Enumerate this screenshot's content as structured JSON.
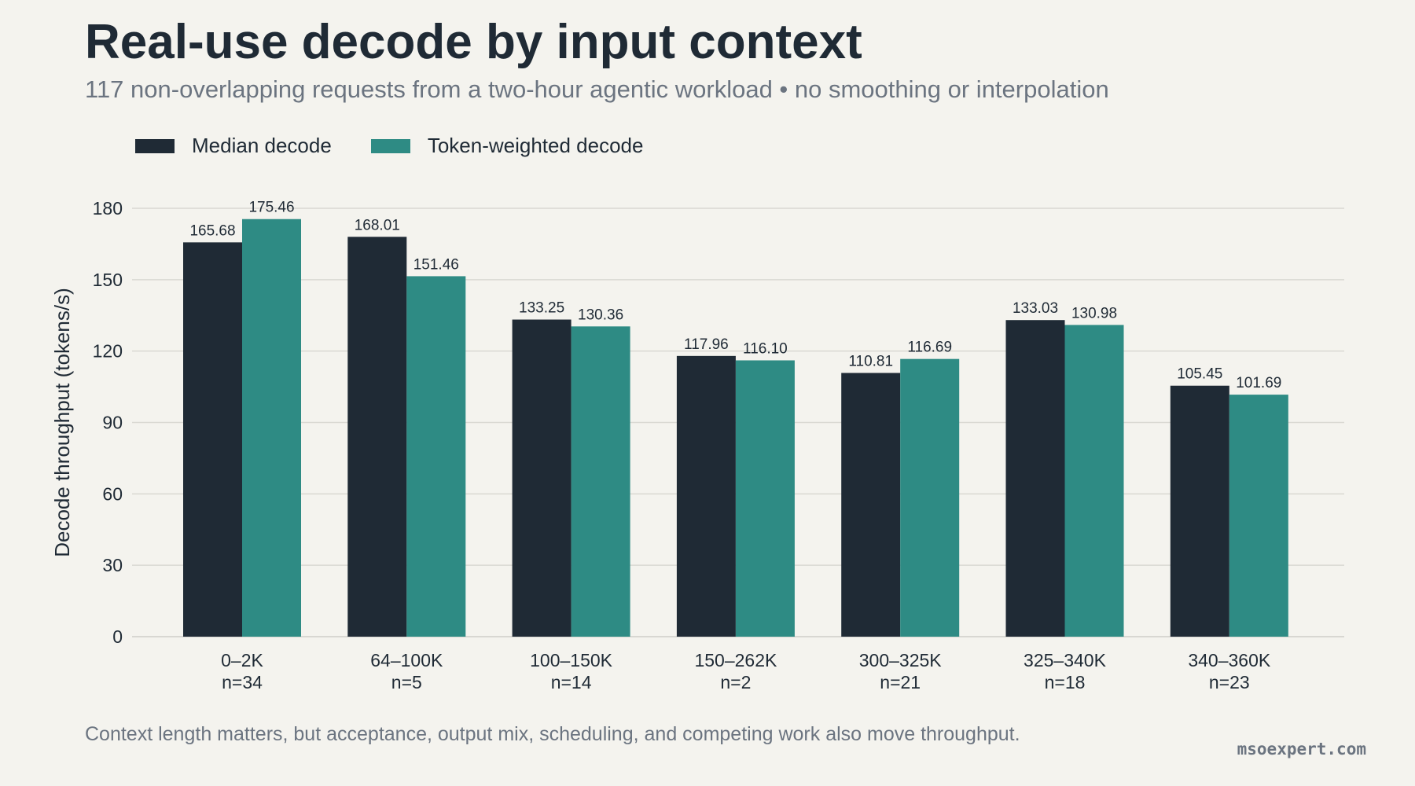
{
  "header": {
    "title": "Real-use decode by input context",
    "subtitle": "117 non-overlapping requests from a two-hour agentic workload • no smoothing or interpolation"
  },
  "footer": {
    "note": "Context length matters, but acceptance, output mix, scheduling, and competing work also move throughput.",
    "brand": "msoexpert.com"
  },
  "colors": {
    "background": "#f4f3ee",
    "median": "#1f2a35",
    "weighted": "#2e8b84",
    "grid": "#d9d8d2"
  },
  "chart_data": {
    "type": "bar",
    "title": "Real-use decode by input context",
    "subtitle": "117 non-overlapping requests from a two-hour agentic workload • no smoothing or interpolation",
    "xlabel": "",
    "ylabel": "Decode throughput (tokens/s)",
    "ylim": [
      0,
      180
    ],
    "yticks": [
      0,
      30,
      60,
      90,
      120,
      150,
      180
    ],
    "grid": true,
    "legend_position": "top-left",
    "categories": [
      "0–2K",
      "64–100K",
      "100–150K",
      "150–262K",
      "300–325K",
      "325–340K",
      "340–360K"
    ],
    "category_counts": [
      "n=34",
      "n=5",
      "n=14",
      "n=2",
      "n=21",
      "n=18",
      "n=23"
    ],
    "series": [
      {
        "name": "Median decode",
        "color": "#1f2a35",
        "values": [
          165.68,
          168.01,
          133.25,
          117.96,
          110.81,
          133.03,
          105.45
        ],
        "labels": [
          "165.68",
          "168.01",
          "133.25",
          "117.96",
          "110.81",
          "133.03",
          "105.45"
        ]
      },
      {
        "name": "Token-weighted decode",
        "color": "#2e8b84",
        "values": [
          175.46,
          151.46,
          130.36,
          116.1,
          116.69,
          130.98,
          101.69
        ],
        "labels": [
          "175.46",
          "151.46",
          "130.36",
          "116.10",
          "116.69",
          "130.98",
          "101.69"
        ]
      }
    ]
  }
}
